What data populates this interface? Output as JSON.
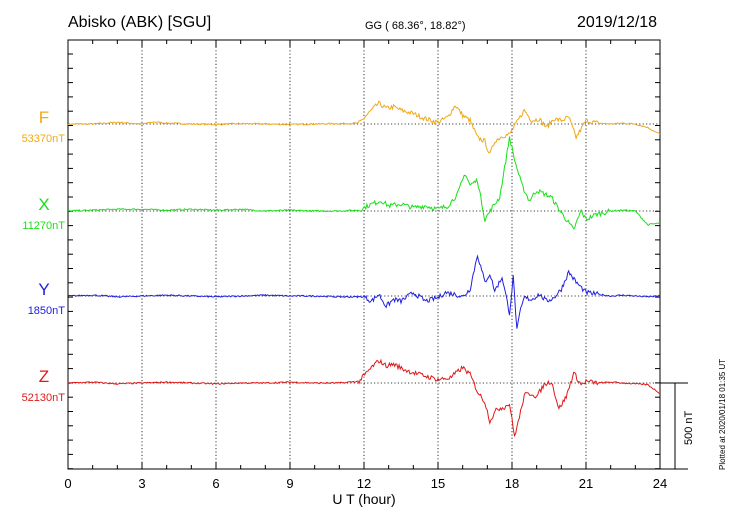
{
  "header": {
    "station": "Abisko (ABK)  [SGU]",
    "coords": "GG ( 68.36°,  18.82°)",
    "date": "2019/12/18"
  },
  "side_note": "Plotted at 2020/01/18 01:35 UT",
  "chart_data": {
    "type": "line",
    "xlabel": "U T (hour)",
    "xlim": [
      0,
      24
    ],
    "xticks": [
      0,
      3,
      6,
      9,
      12,
      15,
      18,
      21,
      24
    ],
    "scale_bar_label": "500 nT",
    "scale_bar_nT": 500,
    "y_units": "nT (offset from baseline)",
    "series": [
      {
        "name": "F",
        "baseline_label": "53370nT",
        "color": "#f0a818",
        "x": [
          0,
          1,
          2,
          3,
          3.5,
          4,
          5,
          6,
          7,
          8,
          9,
          10,
          11,
          11.8,
          12.3,
          12.6,
          12.9,
          13.2,
          13.5,
          14,
          14.5,
          15,
          15.4,
          15.7,
          16,
          16.3,
          16.6,
          16.9,
          17.1,
          17.3,
          17.6,
          17.9,
          18.2,
          18.5,
          18.8,
          19.1,
          19.4,
          19.7,
          20,
          20.3,
          20.6,
          21,
          21.5,
          22,
          22.5,
          23,
          23.5,
          24
        ],
        "values": [
          0,
          0,
          10,
          0,
          12,
          5,
          0,
          -3,
          2,
          0,
          -3,
          0,
          2,
          5,
          80,
          120,
          90,
          100,
          80,
          60,
          30,
          10,
          40,
          110,
          50,
          20,
          -80,
          -100,
          -180,
          -100,
          -70,
          -60,
          10,
          80,
          20,
          30,
          -20,
          30,
          20,
          40,
          -80,
          20,
          5,
          0,
          5,
          0,
          -20,
          -60
        ]
      },
      {
        "name": "X",
        "baseline_label": "11270nT",
        "color": "#18e018",
        "x": [
          0,
          1,
          2,
          3,
          4,
          5,
          6,
          7,
          8,
          9,
          10,
          11,
          11.8,
          12.3,
          12.7,
          13,
          13.5,
          14,
          14.5,
          15,
          15.4,
          15.8,
          16.1,
          16.3,
          16.6,
          16.9,
          17.2,
          17.5,
          17.7,
          17.9,
          18.1,
          18.4,
          18.7,
          19,
          19.3,
          19.6,
          19.9,
          20.2,
          20.5,
          20.8,
          21,
          21.4,
          22,
          22.5,
          23,
          23.5,
          24
        ],
        "values": [
          0,
          5,
          10,
          10,
          5,
          10,
          5,
          10,
          0,
          5,
          0,
          0,
          5,
          40,
          60,
          30,
          40,
          20,
          30,
          10,
          30,
          100,
          220,
          150,
          180,
          -50,
          20,
          80,
          250,
          430,
          300,
          150,
          60,
          120,
          100,
          80,
          10,
          -50,
          -110,
          0,
          -50,
          -20,
          0,
          5,
          0,
          -80,
          -70
        ]
      },
      {
        "name": "Y",
        "baseline_label": "1850nT",
        "color": "#2020e0",
        "x": [
          0,
          1,
          2,
          3,
          4,
          5,
          6,
          7,
          8,
          9,
          10,
          11,
          12,
          12.3,
          12.6,
          12.9,
          13.2,
          13.5,
          14,
          14.5,
          15,
          15.3,
          15.7,
          16,
          16.3,
          16.6,
          16.9,
          17.1,
          17.3,
          17.6,
          17.9,
          18.05,
          18.2,
          18.35,
          18.5,
          18.8,
          19.1,
          19.4,
          19.7,
          20,
          20.3,
          20.6,
          21,
          21.5,
          22,
          22.5,
          23,
          23.5,
          24
        ],
        "values": [
          0,
          5,
          -5,
          0,
          5,
          0,
          -5,
          0,
          5,
          0,
          0,
          -5,
          -5,
          -30,
          10,
          -60,
          -20,
          -30,
          20,
          -30,
          -10,
          20,
          10,
          -5,
          40,
          240,
          80,
          130,
          30,
          110,
          -100,
          110,
          -200,
          -80,
          -10,
          -20,
          10,
          -30,
          -10,
          40,
          140,
          80,
          20,
          10,
          0,
          5,
          0,
          -5,
          0
        ]
      },
      {
        "name": "Z",
        "baseline_label": "52130nT",
        "color": "#e01818",
        "x": [
          0,
          1,
          2,
          3,
          4,
          5,
          6,
          7,
          8,
          9,
          10,
          11,
          11.8,
          12.3,
          12.6,
          12.9,
          13.2,
          13.6,
          14,
          14.5,
          15,
          15.5,
          16,
          16.3,
          16.6,
          16.9,
          17.1,
          17.4,
          17.7,
          17.9,
          18.1,
          18.3,
          18.5,
          18.8,
          19,
          19.3,
          19.6,
          19.9,
          20.2,
          20.5,
          20.8,
          21,
          21.5,
          22,
          22.5,
          23,
          23.5,
          24
        ],
        "values": [
          0,
          5,
          -5,
          0,
          5,
          0,
          -5,
          0,
          0,
          5,
          0,
          0,
          10,
          90,
          130,
          100,
          110,
          80,
          60,
          40,
          20,
          30,
          90,
          50,
          -50,
          -110,
          -220,
          -150,
          -140,
          -120,
          -310,
          -200,
          -70,
          -60,
          -80,
          -10,
          10,
          -150,
          -80,
          60,
          -10,
          10,
          0,
          5,
          0,
          -5,
          -10,
          -60
        ]
      }
    ]
  }
}
